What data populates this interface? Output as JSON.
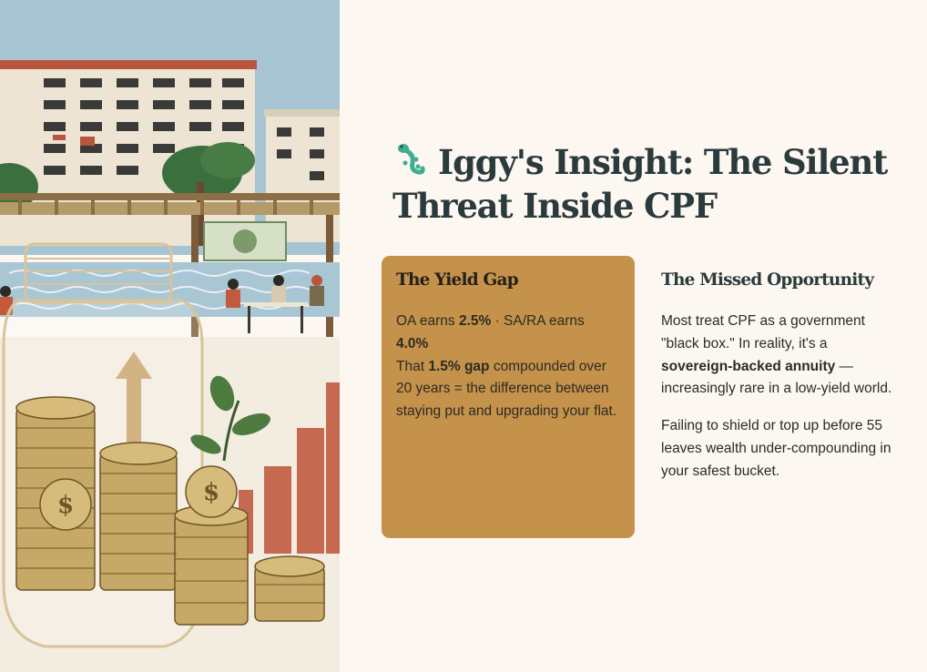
{
  "header": {
    "title": "Iggy's Insight: The Silent Threat Inside CPF",
    "icon": "gecko-icon",
    "accent_color": "#3fae8e"
  },
  "yield_gap_card": {
    "heading": "The Yield Gap",
    "line1_a": "OA earns ",
    "line1_b": "2.5%",
    "line1_c": " · SA/RA earns ",
    "line1_d": "4.0%",
    "line2_a": "That ",
    "line2_b": "1.5% gap",
    "line2_c": " compounded over 20 years = the difference between staying put and upgrading your flat.",
    "background_color": "#c4924a"
  },
  "missed_opportunity": {
    "heading": "The Missed Opportunity",
    "p1_a": "Most treat CPF as a government \"black box.\" In reality, it's a ",
    "p1_b": "sovereign-backed annuity",
    "p1_c": " — increasingly rare in a low-yield world.",
    "p2": "Failing to shield or top up before 55 leaves wealth under-compounding in your safest bucket."
  },
  "illustration": {
    "description_icon": "savings-jar-illustration"
  }
}
